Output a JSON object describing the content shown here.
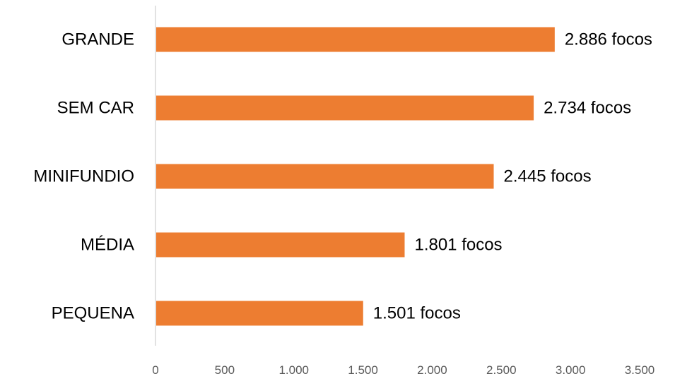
{
  "chart_data": {
    "type": "bar",
    "orientation": "horizontal",
    "title": "",
    "xlabel": "",
    "ylabel": "",
    "categories": [
      "GRANDE",
      "SEM CAR",
      "MINIFUNDIO",
      "MÉDIA",
      "PEQUENA"
    ],
    "values": [
      2886,
      2734,
      2445,
      1801,
      1501
    ],
    "data_labels": [
      "2.886 focos",
      "2.734 focos",
      "2.445 focos",
      "1.801 focos",
      "1.501 focos"
    ],
    "xlim": [
      0,
      3500
    ],
    "x_ticks": [
      0,
      500,
      1000,
      1500,
      2000,
      2500,
      3000,
      3500
    ],
    "x_tick_labels": [
      "0",
      "500",
      "1.000",
      "1.500",
      "2.000",
      "2.500",
      "3.000",
      "3.500"
    ],
    "grid": false,
    "legend": "none",
    "colors": {
      "bar": "#ED7D31",
      "axis_line": "#D9D9D9",
      "category_text": "#000000",
      "tick_text": "#595959"
    }
  }
}
